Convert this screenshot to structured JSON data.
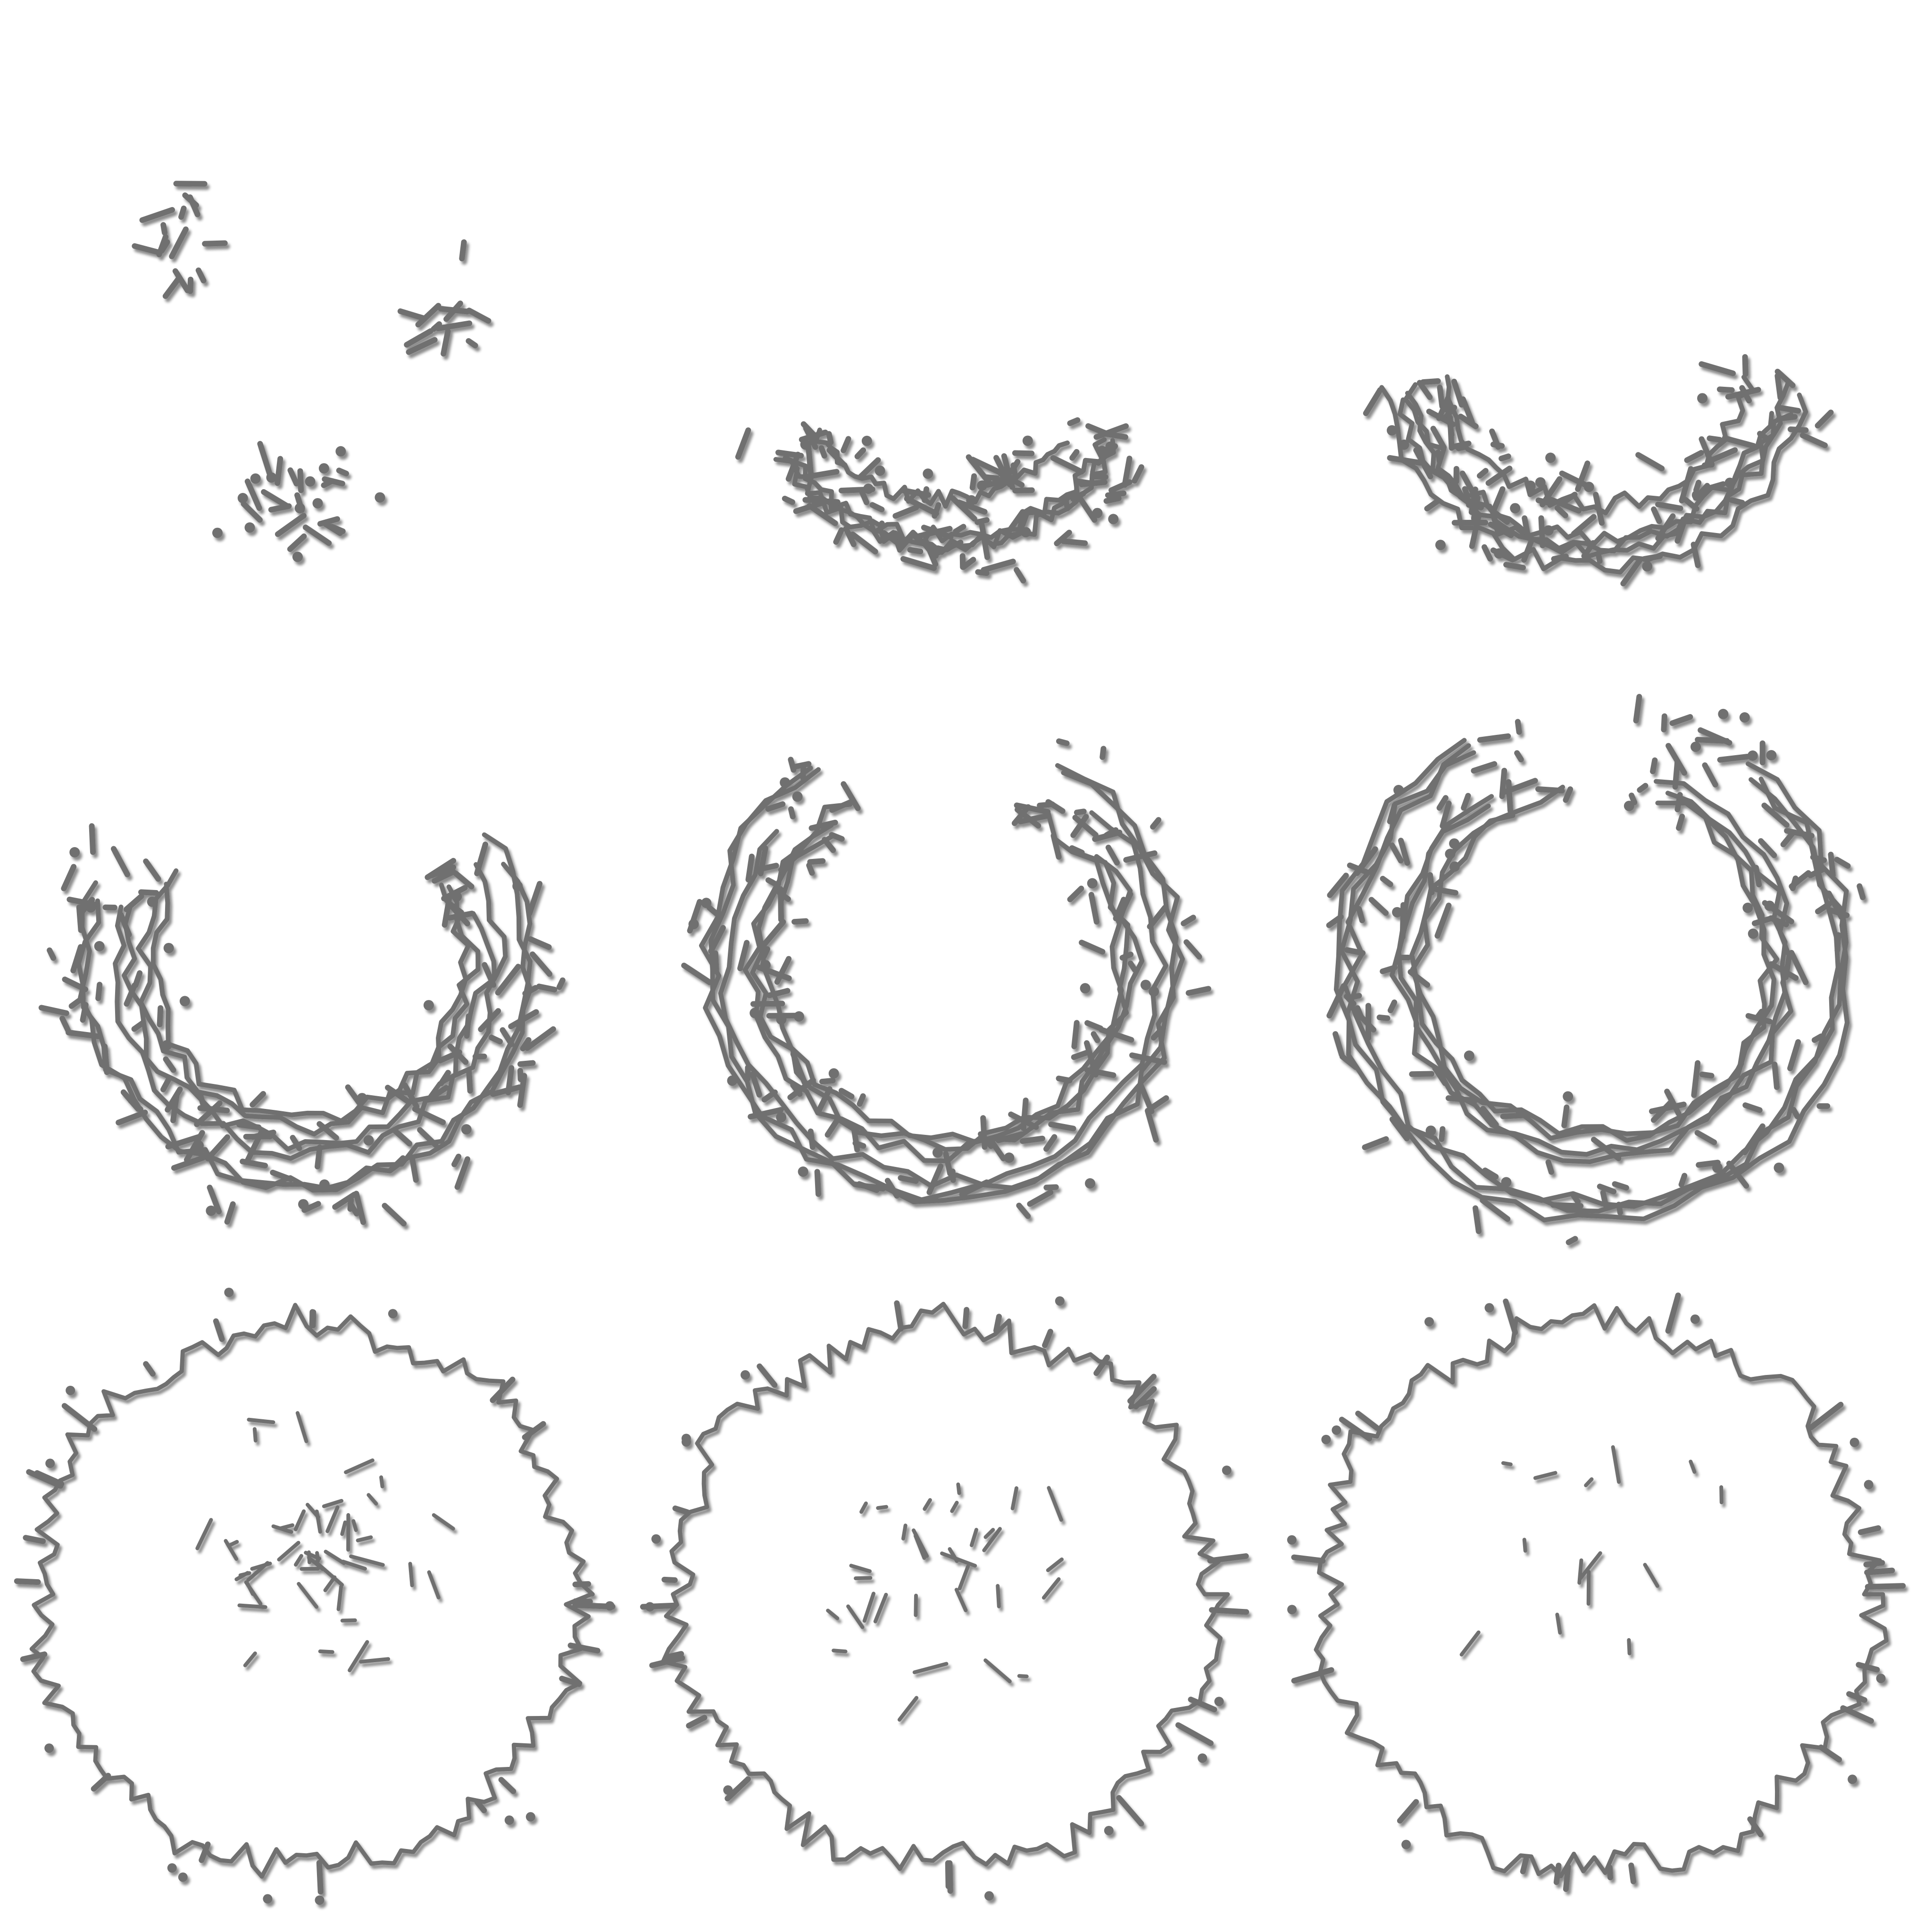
{
  "figure": {
    "rows": 3,
    "cols": 3,
    "background": "#ffffff",
    "stroke_color": "#6f6f6f",
    "highlight_color": "#ffffff",
    "panels": [
      {
        "stage": 1,
        "shape": "scattered-fragments",
        "completeness": 0.15
      },
      {
        "stage": 2,
        "shape": "open-arc",
        "completeness": 0.35
      },
      {
        "stage": 3,
        "shape": "open-arc",
        "completeness": 0.45
      },
      {
        "stage": 4,
        "shape": "open-ring",
        "completeness": 0.7
      },
      {
        "stage": 5,
        "shape": "ring",
        "completeness": 0.85
      },
      {
        "stage": 6,
        "shape": "ring",
        "completeness": 0.95
      },
      {
        "stage": 7,
        "shape": "filled-disc",
        "completeness": 1.0,
        "inner_detail": 0.7
      },
      {
        "stage": 8,
        "shape": "filled-disc",
        "completeness": 1.0,
        "inner_detail": 0.45
      },
      {
        "stage": 9,
        "shape": "filled-disc",
        "completeness": 1.0,
        "inner_detail": 0.2
      }
    ]
  }
}
